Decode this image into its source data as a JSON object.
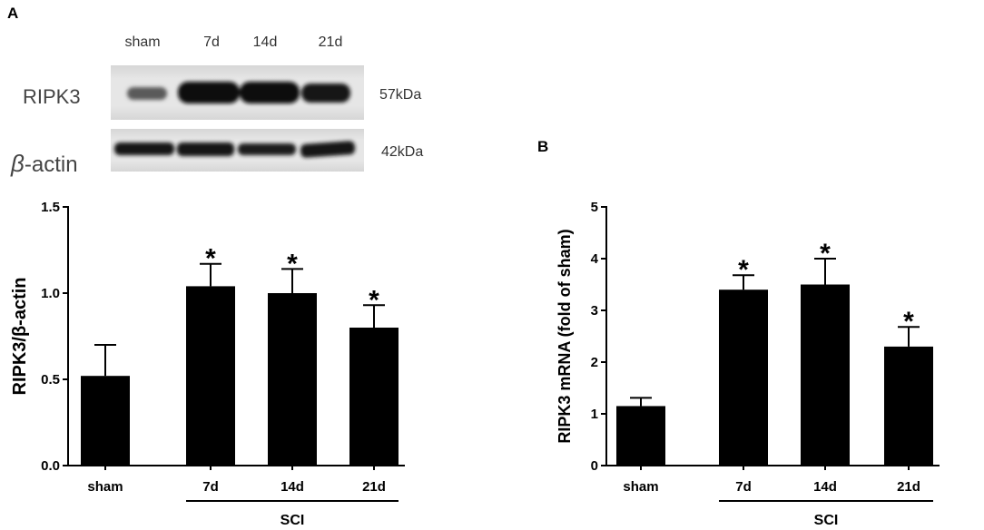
{
  "panels": {
    "a": "A",
    "b": "B"
  },
  "blot": {
    "lanes": [
      "sham",
      "7d",
      "14d",
      "21d"
    ],
    "rows": [
      {
        "label": "RIPK3",
        "size": "57kDa"
      },
      {
        "label": "β-actin",
        "size": "42kDa"
      }
    ]
  },
  "colors": {
    "bar": "#000000",
    "axis": "#000000"
  },
  "chart_data": [
    {
      "type": "bar",
      "categories": [
        "sham",
        "7d",
        "14d",
        "21d"
      ],
      "values": [
        0.52,
        1.04,
        1.0,
        0.8
      ],
      "errors": [
        0.18,
        0.13,
        0.14,
        0.13
      ],
      "annotations": [
        "",
        "*",
        "*",
        "*"
      ],
      "ylabel": "RIPK3/β-actin",
      "ylim": [
        0,
        1.5
      ],
      "yticks": [
        "0.0",
        "0.5",
        "1.0",
        "1.5"
      ],
      "bracket": {
        "label": "SCI",
        "span": [
          1,
          3
        ]
      },
      "grid": false
    },
    {
      "type": "bar",
      "categories": [
        "sham",
        "7d",
        "14d",
        "21d"
      ],
      "values": [
        1.15,
        3.4,
        3.5,
        2.3
      ],
      "errors": [
        0.16,
        0.28,
        0.5,
        0.38
      ],
      "annotations": [
        "",
        "*",
        "*",
        "*"
      ],
      "ylabel": "RIPK3 mRNA (fold of sham)",
      "ylim": [
        0,
        5
      ],
      "yticks": [
        "0",
        "1",
        "2",
        "3",
        "4",
        "5"
      ],
      "bracket": {
        "label": "SCI",
        "span": [
          1,
          3
        ]
      },
      "grid": false
    }
  ]
}
